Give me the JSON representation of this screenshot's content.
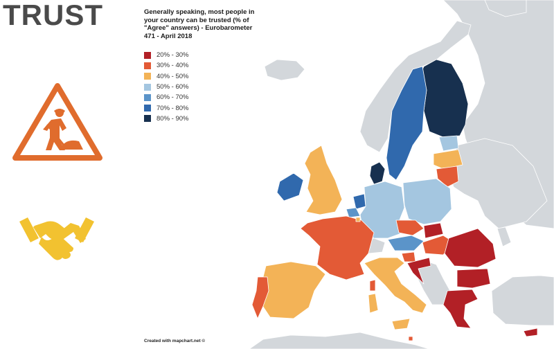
{
  "header": {
    "title": "TRUST"
  },
  "legend": {
    "heading": "Generally speaking, most people in your country can be trusted (% of \"Agree\" answers) - Eurobarometer 471 - April 2018",
    "items": [
      {
        "label": "20% - 30%",
        "color": "#b22026"
      },
      {
        "label": "30% - 40%",
        "color": "#e35a36"
      },
      {
        "label": "40% - 50%",
        "color": "#f3b357"
      },
      {
        "label": "50% - 60%",
        "color": "#a4c6e0"
      },
      {
        "label": "60% - 70%",
        "color": "#5b94c9"
      },
      {
        "label": "70% - 80%",
        "color": "#3069ad"
      },
      {
        "label": "80% - 90%",
        "color": "#17304f"
      }
    ]
  },
  "icons": {
    "top": "road-work-warning-icon",
    "bottom": "handshake-icon",
    "color": "#e06c2d",
    "handshake_color": "#f2c230"
  },
  "map_colors": {
    "no_data": "#d3d7db",
    "sea": "#ffffff"
  },
  "credit": "Created with mapchart.net ©"
}
